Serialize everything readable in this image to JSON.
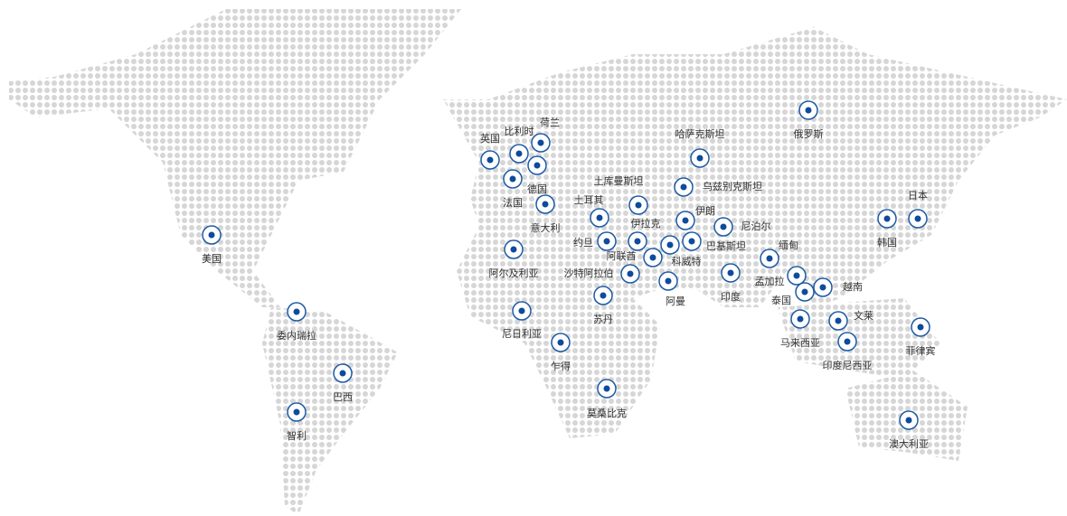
{
  "locations": [
    "美国",
    "委内瑞拉",
    "巴西",
    "智利",
    "英国",
    "比利时",
    "荷兰",
    "德国",
    "法国",
    "意大利",
    "阿尔及利亚",
    "尼日利亚",
    "乍得",
    "土耳其",
    "约旦",
    "土库曼斯坦",
    "伊拉克",
    "阿联酋",
    "沙特阿拉伯",
    "苏丹",
    "莫桑比克",
    "阿曼",
    "科威特",
    "伊朗",
    "巴基斯坦",
    "乌兹别克斯坦",
    "哈萨克斯坦",
    "尼泊尔",
    "印度",
    "孟加拉",
    "缅甸",
    "泰国",
    "越南",
    "马来西亚",
    "文莱",
    "印度尼西亚",
    "菲律宾",
    "澳大利亚",
    "俄罗斯",
    "韩国",
    "日本"
  ]
}
